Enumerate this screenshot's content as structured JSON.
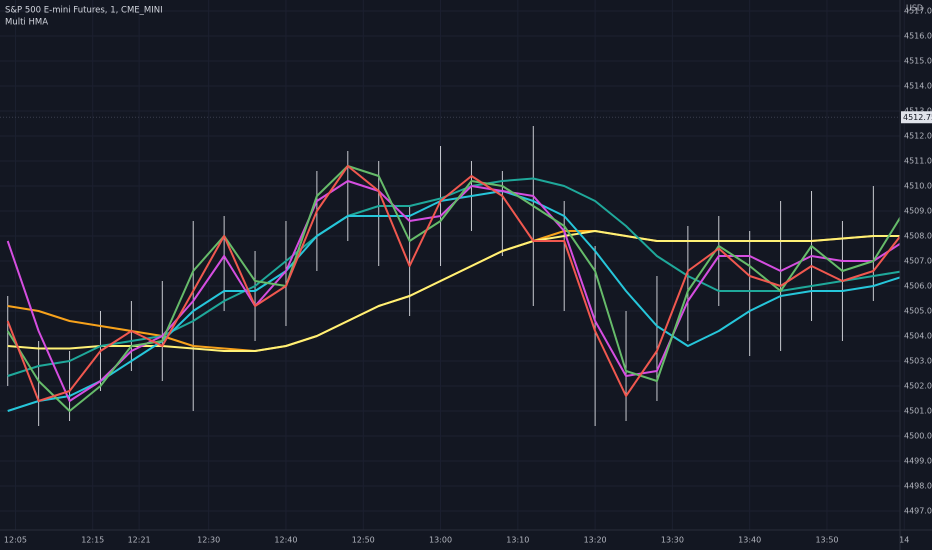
{
  "chart_data": {
    "type": "line",
    "title": "S&P 500 E-mini Futures, 1, CME_MINI",
    "subtitle": "Multi HMA",
    "currency": "USD",
    "last_price": {
      "value": 4512.75,
      "label": "4512.75"
    },
    "xlim": [
      "12:03",
      "14:01"
    ],
    "ylim": [
      4496.24,
      4517.44
    ],
    "yticks": [
      {
        "value": 4497,
        "label": "4497.00"
      },
      {
        "value": 4498,
        "label": "4498.00"
      },
      {
        "value": 4499,
        "label": "4499.00"
      },
      {
        "value": 4500,
        "label": "4500.00"
      },
      {
        "value": 4501,
        "label": "4501.00"
      },
      {
        "value": 4502,
        "label": "4502.00"
      },
      {
        "value": 4503,
        "label": "4503.00"
      },
      {
        "value": 4504,
        "label": "4504.00"
      },
      {
        "value": 4505,
        "label": "4505.00"
      },
      {
        "value": 4506,
        "label": "4506.00"
      },
      {
        "value": 4507,
        "label": "4507.00"
      },
      {
        "value": 4508,
        "label": "4508.00"
      },
      {
        "value": 4509,
        "label": "4509.00"
      },
      {
        "value": 4510,
        "label": "4510.00"
      },
      {
        "value": 4511,
        "label": "4511.00"
      },
      {
        "value": 4512,
        "label": "4512.00"
      },
      {
        "value": 4513,
        "label": "4513.00"
      },
      {
        "value": 4514,
        "label": "4514.00"
      },
      {
        "value": 4515,
        "label": "4515.00"
      },
      {
        "value": 4516,
        "label": "4516.00"
      },
      {
        "value": 4517,
        "label": "4517.00"
      }
    ],
    "xticks": [
      "12:05",
      "12:15",
      "12:21",
      "12:30",
      "12:40",
      "12:50",
      "13:00",
      "13:10",
      "13:20",
      "13:30",
      "13:40",
      "13:50",
      "14"
    ],
    "grid": true,
    "x": [
      "12:04",
      "12:08",
      "12:12",
      "12:16",
      "12:20",
      "12:24",
      "12:28",
      "12:32",
      "12:36",
      "12:40",
      "12:44",
      "12:48",
      "12:52",
      "12:56",
      "13:00",
      "13:04",
      "13:08",
      "13:12",
      "13:16",
      "13:20",
      "13:24",
      "13:28",
      "13:32",
      "13:36",
      "13:40",
      "13:44",
      "13:48",
      "13:52",
      "13:56",
      "14:00"
    ],
    "bars": {
      "color": "#c8cad0",
      "high": [
        4505.6,
        4503.8,
        4503.4,
        4505.0,
        4505.4,
        4506.2,
        4508.6,
        4508.8,
        4507.4,
        4508.6,
        4510.6,
        4511.4,
        4511.0,
        4509.2,
        4511.6,
        4511.0,
        4510.6,
        4512.4,
        4509.4,
        4507.6,
        4505.0,
        4506.4,
        4508.4,
        4508.8,
        4508.2,
        4509.4,
        4509.8,
        4508.6,
        4510.0,
        4510.0
      ],
      "low": [
        4502.0,
        4500.4,
        4500.6,
        4501.8,
        4502.6,
        4502.2,
        4501.0,
        4505.0,
        4503.8,
        4504.4,
        4506.6,
        4507.8,
        4506.8,
        4504.8,
        4506.8,
        4508.2,
        4507.2,
        4505.2,
        4505.0,
        4500.4,
        4500.6,
        4501.4,
        4503.8,
        4505.2,
        4503.2,
        4503.4,
        4504.6,
        4503.8,
        4505.4,
        4506.6
      ]
    },
    "series": [
      {
        "color": "#f7a21b",
        "values": [
          4505.2,
          4505.0,
          4504.6,
          4504.4,
          4504.2,
          4504.0,
          4503.6,
          4503.5,
          4503.4,
          4503.6,
          4504.0,
          4504.6,
          4505.2,
          4505.6,
          4506.2,
          4506.8,
          4507.4,
          4507.8,
          4508.2,
          4508.2,
          4508.0,
          4507.8,
          4507.8,
          4507.8,
          4507.8,
          4507.8,
          4507.8,
          4507.9,
          4508.0,
          4508.0
        ]
      },
      {
        "color": "#fff176",
        "values": [
          4503.6,
          4503.5,
          4503.5,
          4503.6,
          4503.6,
          4503.6,
          4503.5,
          4503.4,
          4503.4,
          4503.6,
          4504.0,
          4504.6,
          4505.2,
          4505.6,
          4506.2,
          4506.8,
          4507.4,
          4507.8,
          4508.0,
          4508.2,
          4508.0,
          4507.8,
          4507.8,
          4507.8,
          4507.8,
          4507.8,
          4507.8,
          4507.9,
          4508.0,
          4508.0
        ]
      },
      {
        "color": "#1fa89a",
        "values": [
          4502.4,
          4502.8,
          4503.0,
          4503.6,
          4503.8,
          4504.0,
          4504.6,
          4505.4,
          4506.0,
          4507.0,
          4508.0,
          4508.8,
          4509.2,
          4509.2,
          4509.5,
          4510.0,
          4510.2,
          4510.3,
          4510.0,
          4509.4,
          4508.4,
          4507.2,
          4506.4,
          4505.8,
          4505.8,
          4505.8,
          4506.0,
          4506.2,
          4506.4,
          4506.6
        ]
      },
      {
        "color": "#26c6da",
        "values": [
          4501.0,
          4501.4,
          4501.6,
          4502.2,
          4503.0,
          4503.8,
          4505.0,
          4505.8,
          4505.8,
          4506.6,
          4508.0,
          4508.8,
          4508.8,
          4508.8,
          4509.4,
          4509.6,
          4509.8,
          4509.4,
          4508.8,
          4507.4,
          4505.8,
          4504.4,
          4503.6,
          4504.2,
          4505.0,
          4505.6,
          4505.8,
          4505.8,
          4506.0,
          4506.4
        ]
      },
      {
        "color": "#d54ee0",
        "values": [
          4507.8,
          4504.2,
          4501.4,
          4502.2,
          4503.4,
          4504.0,
          4505.4,
          4507.2,
          4505.2,
          4506.6,
          4509.4,
          4510.2,
          4509.8,
          4508.6,
          4508.8,
          4510.0,
          4509.8,
          4509.6,
          4508.2,
          4504.6,
          4502.4,
          4502.6,
          4505.4,
          4507.2,
          4507.2,
          4506.6,
          4507.2,
          4507.0,
          4507.0,
          4507.8
        ]
      },
      {
        "color": "#66bb6a",
        "values": [
          4504.2,
          4502.2,
          4501.0,
          4502.0,
          4503.6,
          4503.8,
          4506.6,
          4508.0,
          4506.2,
          4506.0,
          4509.6,
          4510.8,
          4510.4,
          4507.8,
          4508.6,
          4510.2,
          4510.0,
          4509.2,
          4508.4,
          4506.6,
          4502.6,
          4502.2,
          4505.8,
          4507.6,
          4506.8,
          4505.8,
          4507.6,
          4506.6,
          4507.0,
          4509.0
        ]
      },
      {
        "color": "#f0584f",
        "values": [
          4504.6,
          4501.4,
          4501.8,
          4503.4,
          4504.2,
          4503.6,
          4505.8,
          4508.0,
          4505.2,
          4506.0,
          4509.0,
          4510.8,
          4509.8,
          4506.8,
          4509.4,
          4510.4,
          4509.6,
          4507.8,
          4507.8,
          4504.2,
          4501.6,
          4503.4,
          4506.6,
          4507.5,
          4506.4,
          4506.0,
          4506.8,
          4506.2,
          4506.6,
          4508.2
        ]
      }
    ]
  }
}
